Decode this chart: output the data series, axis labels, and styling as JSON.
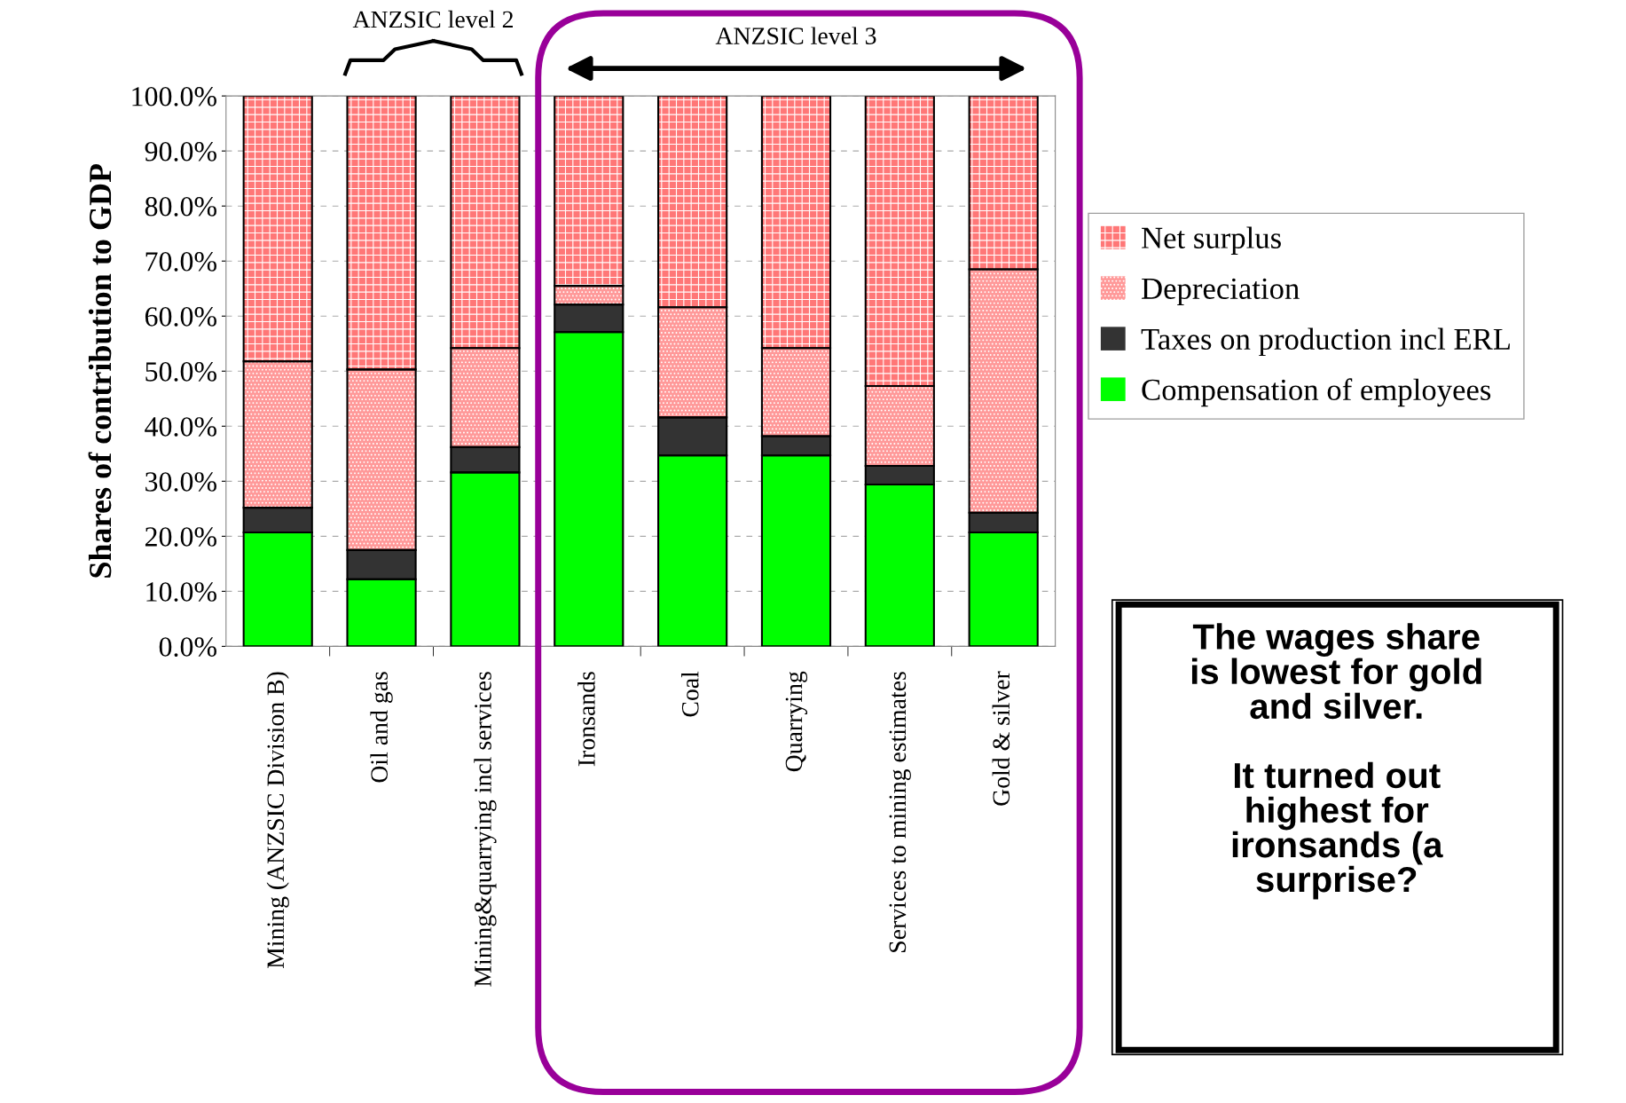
{
  "chart_data": {
    "type": "bar",
    "stacked": true,
    "ylabel": "Shares of contribution to GDP",
    "categories": [
      "Mining (ANZSIC Division B)",
      "Oil and gas",
      "Mining&quarrying incl services",
      "Ironsands",
      "Coal",
      "Quarrying",
      "Services to mining estimates",
      "Gold & silver"
    ],
    "series": [
      {
        "name": "Compensation of employees",
        "color": "#00ff00",
        "values": [
          20.7,
          12.2,
          31.6,
          57.1,
          34.7,
          34.7,
          29.4,
          20.7
        ]
      },
      {
        "name": "Taxes on production incl ERL",
        "color": "#333333",
        "values": [
          4.5,
          5.3,
          4.6,
          5.0,
          6.9,
          3.5,
          3.4,
          3.6
        ]
      },
      {
        "name": "Depreciation",
        "color": "#ff9999",
        "values": [
          26.6,
          32.8,
          18.0,
          3.4,
          20.0,
          16.0,
          14.5,
          44.2
        ]
      },
      {
        "name": "Net surplus",
        "color": "#ff7777",
        "values": [
          48.2,
          49.7,
          45.8,
          34.5,
          38.4,
          45.8,
          52.7,
          31.5
        ]
      }
    ],
    "ylim": [
      0,
      100
    ],
    "yticks": [
      {
        "value": 0,
        "label": "0.0%"
      },
      {
        "value": 10,
        "label": "10.0%"
      },
      {
        "value": 20,
        "label": "20.0%"
      },
      {
        "value": 30,
        "label": "30.0%"
      },
      {
        "value": 40,
        "label": "40.0%"
      },
      {
        "value": 50,
        "label": "50.0%"
      },
      {
        "value": 60,
        "label": "60.0%"
      },
      {
        "value": 70,
        "label": "70.0%"
      },
      {
        "value": 80,
        "label": "80.0%"
      },
      {
        "value": 90,
        "label": "90.0%"
      },
      {
        "value": 100,
        "label": "100.0%"
      }
    ],
    "grid": "y",
    "legend": "right",
    "annotations": [
      "ANZSIC level 2",
      "ANZSIC level 3",
      "The wages share\nis lowest for gold\nand silver.\n\nIt turned out\nhighest for\nironsands (a\nsurprise?"
    ]
  }
}
